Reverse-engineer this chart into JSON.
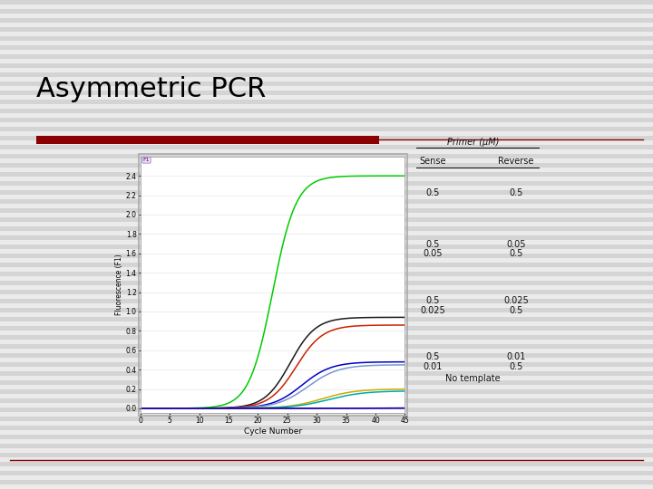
{
  "title": "Asymmetric PCR",
  "title_fontsize": 22,
  "title_color": "#000000",
  "xlabel": "Cycle Number",
  "ylabel": "Fluorescence (F1)",
  "xlim": [
    0,
    45
  ],
  "ylim": [
    -0.05,
    2.6
  ],
  "yticks": [
    0.0,
    0.2,
    0.4,
    0.6,
    0.8,
    1.0,
    1.2,
    1.4,
    1.6,
    1.8,
    2.0,
    2.2,
    2.4
  ],
  "xticks": [
    0,
    5,
    10,
    15,
    20,
    25,
    30,
    35,
    40,
    45
  ],
  "plot_bg": "#ffffff",
  "slide_bg": "#d4d4d4",
  "stripe_color": "#ffffff",
  "red_bar_color": "#8B0000",
  "thin_line_color": "#8B0000",
  "curves": [
    {
      "color": "#00cc00",
      "plateau": 2.4,
      "midpoint": 22.5,
      "steepness": 0.5
    },
    {
      "color": "#1a1a1a",
      "plateau": 0.94,
      "midpoint": 25.5,
      "steepness": 0.46
    },
    {
      "color": "#cc2200",
      "plateau": 0.86,
      "midpoint": 26.5,
      "steepness": 0.44
    },
    {
      "color": "#0000cc",
      "plateau": 0.48,
      "midpoint": 27.5,
      "steepness": 0.4
    },
    {
      "color": "#7799cc",
      "plateau": 0.45,
      "midpoint": 28.5,
      "steepness": 0.38
    },
    {
      "color": "#ccaa00",
      "plateau": 0.2,
      "midpoint": 31.0,
      "steepness": 0.35
    },
    {
      "color": "#00aaaa",
      "plateau": 0.18,
      "midpoint": 32.0,
      "steepness": 0.33
    },
    {
      "color": "#cc2200",
      "plateau": 0.004,
      "midpoint": 38.0,
      "steepness": 0.3
    },
    {
      "color": "#0000cc",
      "plateau": 0.003,
      "midpoint": 40.0,
      "steepness": 0.25
    }
  ],
  "table_header": "Primer (μM)",
  "table_col1": "Sense",
  "table_col2": "Reverse",
  "table_rows": [
    [
      "0.5",
      "0.5",
      true
    ],
    [
      "0.5",
      "0.05",
      false
    ],
    [
      "0.05",
      "0.5",
      false
    ],
    [
      "0.5",
      "0.025",
      false
    ],
    [
      "0.025",
      "0.5",
      false
    ],
    [
      "0.5",
      "0.01",
      false
    ],
    [
      "0.01",
      "0.5",
      false
    ],
    [
      "No template",
      "",
      false
    ]
  ]
}
